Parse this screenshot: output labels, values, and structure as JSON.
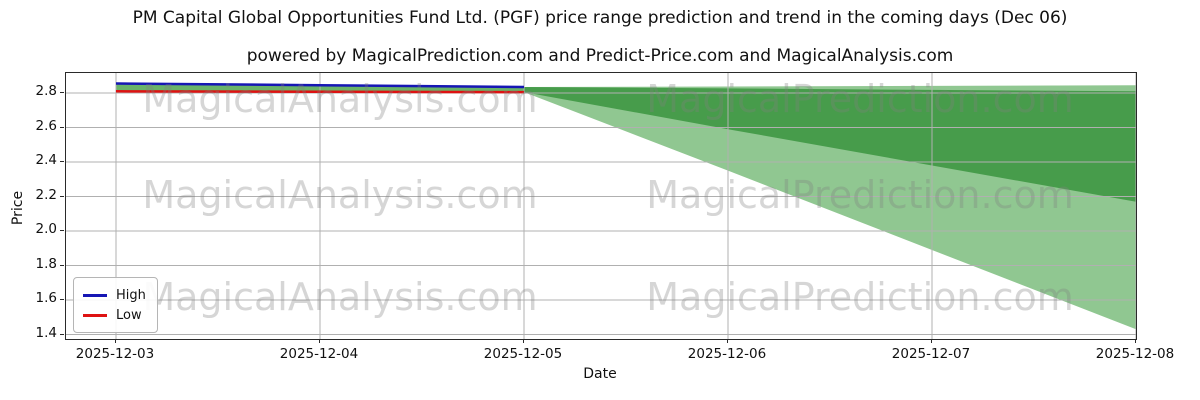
{
  "title": "PM Capital Global Opportunities Fund Ltd. (PGF) price range prediction and trend in the coming days (Dec 06)",
  "subtitle": "powered by MagicalPrediction.com and Predict-Price.com and MagicalAnalysis.com",
  "watermarks": {
    "left_text": "MagicalAnalysis.com",
    "right_text": "MagicalPrediction.com"
  },
  "axes": {
    "x_label": "Date",
    "y_label": "Price",
    "x_ticks": [
      "2025-12-03",
      "2025-12-04",
      "2025-12-05",
      "2025-12-06",
      "2025-12-07",
      "2025-12-08"
    ],
    "y_ticks": [
      2.8,
      2.6,
      2.4,
      2.2,
      2.0,
      1.8,
      1.6,
      1.4
    ]
  },
  "legend": [
    {
      "label": "High",
      "color": "#1616b4"
    },
    {
      "label": "Low",
      "color": "#de1212"
    }
  ],
  "colors": {
    "high_line": "#1616b4",
    "low_line": "#de1212",
    "historical_band": "#69b369",
    "prediction_outer_band": "#90c791",
    "prediction_inner_band": "#479c4b",
    "grid": "#b0b0b0",
    "spine": "#2a2a2a"
  },
  "chart_data": {
    "type": "line",
    "title": "PM Capital Global Opportunities Fund Ltd. (PGF) price range prediction and trend in the coming days (Dec 06)",
    "xlabel": "Date",
    "ylabel": "Price",
    "x": [
      "2025-12-03",
      "2025-12-04",
      "2025-12-05",
      "2025-12-06",
      "2025-12-07",
      "2025-12-08"
    ],
    "ylim": [
      1.374,
      2.916
    ],
    "grid": true,
    "legend_position": "lower left",
    "series": [
      {
        "name": "High",
        "color": "#1616b4",
        "values": [
          2.855,
          2.845,
          2.835,
          null,
          null,
          null
        ]
      },
      {
        "name": "Low",
        "color": "#de1212",
        "values": [
          2.81,
          2.807,
          2.805,
          null,
          null,
          null
        ]
      }
    ],
    "bands": [
      {
        "name": "historical-range",
        "color": "#69b369",
        "upper": [
          2.855,
          2.845,
          2.835,
          null,
          null,
          null
        ],
        "lower": [
          2.81,
          2.807,
          2.805,
          null,
          null,
          null
        ]
      },
      {
        "name": "prediction-outer-range",
        "color": "#90c791",
        "upper": [
          null,
          null,
          2.835,
          2.838,
          2.841,
          2.845
        ],
        "lower": [
          null,
          null,
          2.805,
          2.35,
          1.89,
          1.43
        ]
      },
      {
        "name": "prediction-inner-range",
        "color": "#479c4b",
        "upper": [
          null,
          null,
          2.835,
          2.827,
          2.818,
          2.81
        ],
        "lower": [
          null,
          null,
          2.805,
          2.59,
          2.38,
          2.17
        ]
      }
    ]
  }
}
